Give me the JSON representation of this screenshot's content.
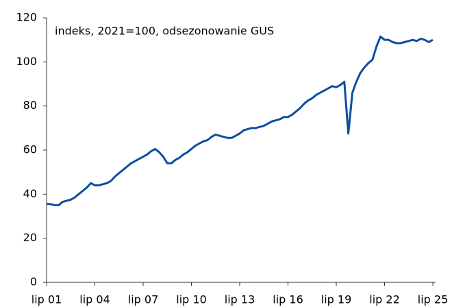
{
  "chart_data": {
    "type": "line",
    "annotation": "indeks, 2021=100, odsezonowanie GUS",
    "categories": [
      "lip 01",
      null,
      null,
      null,
      null,
      null,
      null,
      null,
      null,
      null,
      null,
      null,
      "lip 04",
      null,
      null,
      null,
      null,
      null,
      null,
      null,
      null,
      null,
      null,
      null,
      "lip 07",
      null,
      null,
      null,
      null,
      null,
      null,
      null,
      null,
      null,
      null,
      null,
      "lip 10",
      null,
      null,
      null,
      null,
      null,
      null,
      null,
      null,
      null,
      null,
      null,
      "lip 13",
      null,
      null,
      null,
      null,
      null,
      null,
      null,
      null,
      null,
      null,
      null,
      "lip 16",
      null,
      null,
      null,
      null,
      null,
      null,
      null,
      null,
      null,
      null,
      null,
      "lip 19",
      null,
      null,
      null,
      null,
      null,
      null,
      null,
      null,
      null,
      null,
      null,
      "lip 22",
      null,
      null,
      null,
      null,
      null,
      null,
      null,
      null,
      null,
      null,
      null,
      "lip 25"
    ],
    "series": [
      {
        "color": "#0b4ea2",
        "values": [
          35.5,
          35.5,
          35,
          35,
          36.5,
          37,
          37.5,
          38.5,
          40,
          41.5,
          43,
          45,
          44,
          44,
          44.5,
          45,
          46,
          48,
          49.5,
          51,
          52.5,
          54,
          55,
          56,
          57,
          58,
          59.5,
          60.5,
          59,
          57,
          54,
          54,
          55.5,
          56.5,
          58,
          59,
          60.5,
          62,
          63,
          64,
          64.5,
          66,
          67,
          66.5,
          66,
          65.5,
          65.5,
          66.5,
          67.5,
          69,
          69.5,
          70,
          70,
          70.5,
          71,
          72,
          73,
          73.5,
          74,
          75,
          75,
          76,
          77.5,
          79,
          81,
          82.5,
          83.5,
          85,
          86,
          87,
          88,
          89,
          88.5,
          89.5,
          91,
          67.5,
          86,
          91,
          95,
          97.5,
          99.5,
          101,
          107,
          111.5,
          110,
          110,
          109,
          108.5,
          108.5,
          109,
          109.5,
          110,
          109.5,
          110.5,
          110,
          109,
          110
        ]
      }
    ],
    "ylim": [
      0,
      120
    ],
    "yticks": [
      0,
      20,
      40,
      60,
      80,
      100,
      120
    ],
    "grid": false
  }
}
